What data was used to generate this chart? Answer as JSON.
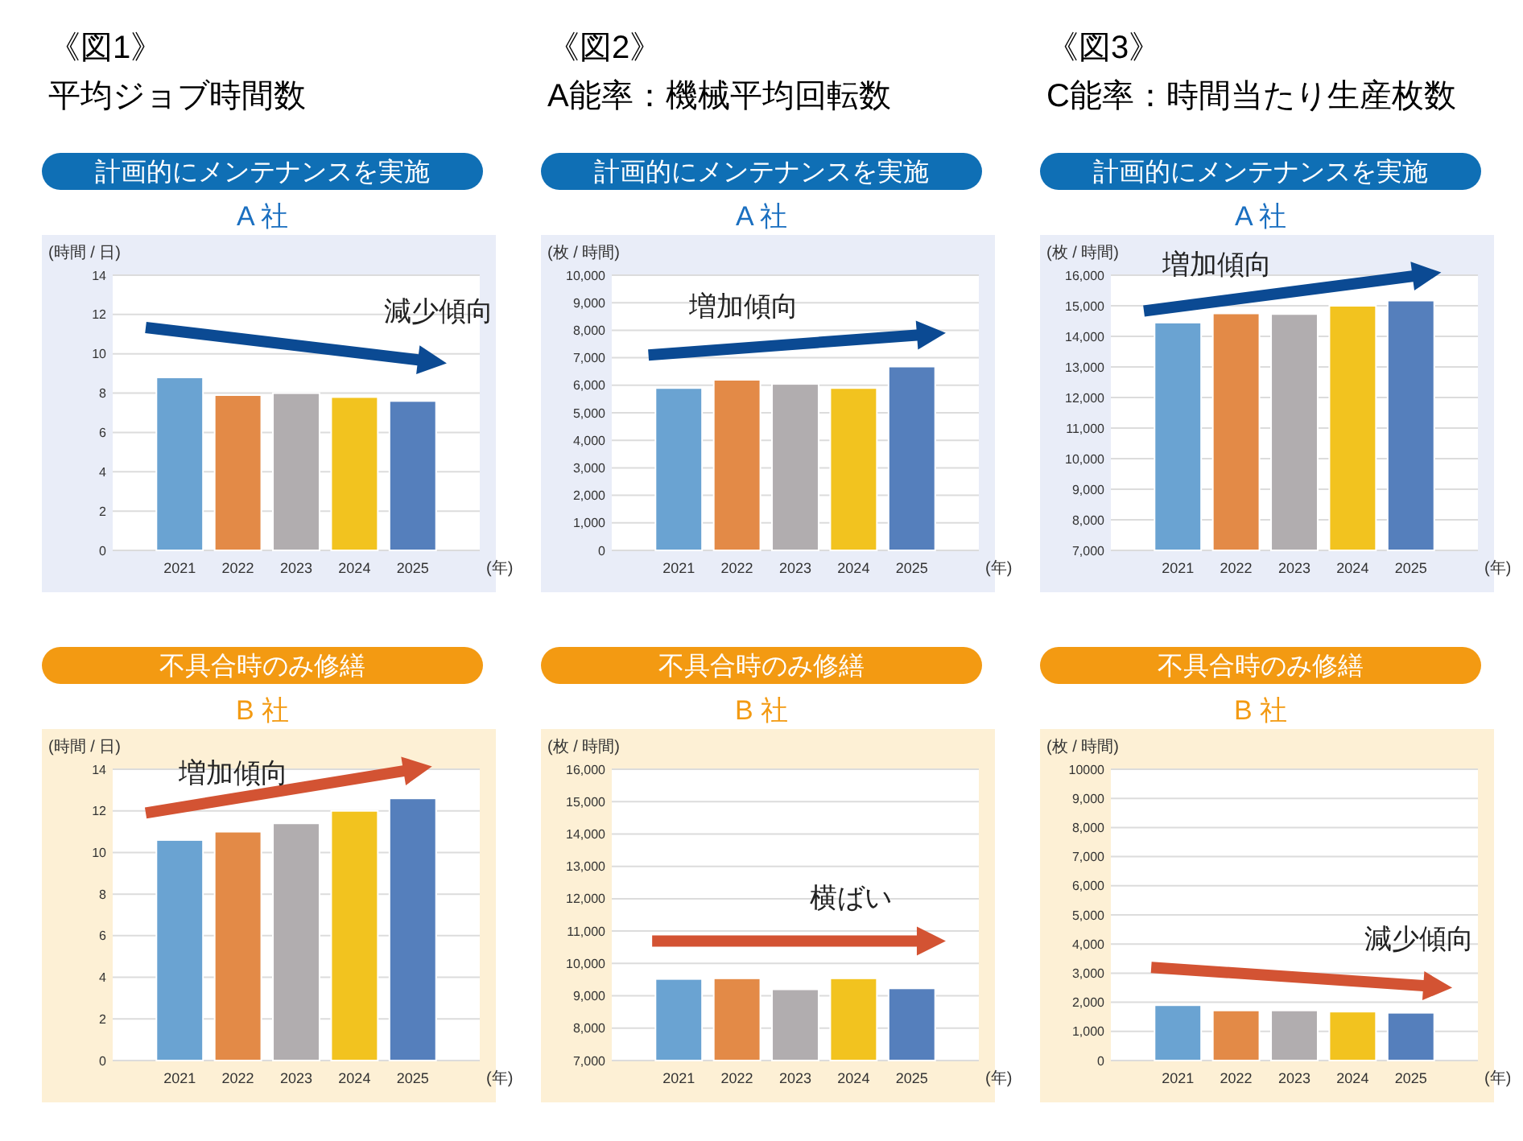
{
  "chart_data": [
    {
      "type": "bar",
      "title": "《図1》",
      "subtitle": "平均ジョブ時間数",
      "annotations": [
        "計画的にメンテナンスを実施",
        "A 社",
        "減少傾向"
      ],
      "ylabel": "(時間 / 日)",
      "xlabel": "(年)",
      "categories": [
        "2021",
        "2022",
        "2023",
        "2024",
        "2025"
      ],
      "values": [
        8.8,
        7.9,
        8.0,
        7.8,
        7.6
      ],
      "colors": [
        "#6aa3d2",
        "#e38a47",
        "#b1adaf",
        "#f2c31f",
        "#557fbc"
      ],
      "ylim": [
        0,
        14
      ],
      "yticks": [
        0,
        2,
        4,
        6,
        8,
        10,
        12,
        14
      ],
      "grid": "y"
    },
    {
      "type": "bar",
      "title": "《図2》",
      "subtitle": "A能率：機械平均回転数",
      "annotations": [
        "計画的にメンテナンスを実施",
        "A 社",
        "増加傾向"
      ],
      "ylabel": "(枚 / 時間)",
      "xlabel": "(年)",
      "categories": [
        "2021",
        "2022",
        "2023",
        "2024",
        "2025"
      ],
      "values": [
        5900,
        6200,
        6050,
        5900,
        6680
      ],
      "colors": [
        "#6aa3d2",
        "#e38a47",
        "#b1adaf",
        "#f2c31f",
        "#557fbc"
      ],
      "ylim": [
        0,
        10000
      ],
      "yticks": [
        0,
        {
          "value": 1000,
          "label": "1,000"
        },
        {
          "value": 2000,
          "label": "2,000"
        },
        {
          "value": 3000,
          "label": "3,000"
        },
        {
          "value": 4000,
          "label": "4,000"
        },
        {
          "value": 5000,
          "label": "5,000"
        },
        {
          "value": 6000,
          "label": "6,000"
        },
        {
          "value": 7000,
          "label": "7,000"
        },
        {
          "value": 8000,
          "label": "8,000"
        },
        {
          "value": 9000,
          "label": "9,000"
        },
        {
          "value": 10000,
          "label": "10,000"
        }
      ],
      "grid": "y"
    },
    {
      "type": "bar",
      "title": "《図3》",
      "subtitle": "C能率：時間当たり生産枚数",
      "annotations": [
        "計画的にメンテナンスを実施",
        "A 社",
        "増加傾向"
      ],
      "ylabel": "(枚 / 時間)",
      "xlabel": "(年)",
      "categories": [
        "2021",
        "2022",
        "2023",
        "2024",
        "2025"
      ],
      "values": [
        14450,
        14750,
        14730,
        15000,
        15170
      ],
      "colors": [
        "#6aa3d2",
        "#e38a47",
        "#b1adaf",
        "#f2c31f",
        "#557fbc"
      ],
      "ylim": [
        7000,
        16000
      ],
      "yticks": [
        {
          "value": 7000,
          "label": "7,000"
        },
        {
          "value": 8000,
          "label": "8,000"
        },
        {
          "value": 9000,
          "label": "9,000"
        },
        {
          "value": 10000,
          "label": "10,000"
        },
        {
          "value": 11000,
          "label": "11,000"
        },
        {
          "value": 12000,
          "label": "12,000"
        },
        {
          "value": 13000,
          "label": "13,000"
        },
        {
          "value": 14000,
          "label": "14,000"
        },
        {
          "value": 15000,
          "label": "15,000"
        },
        {
          "value": 16000,
          "label": "16,000"
        }
      ],
      "grid": "y"
    },
    {
      "type": "bar",
      "annotations": [
        "不具合時のみ修繕",
        "B 社",
        "増加傾向"
      ],
      "ylabel": "(時間 / 日)",
      "xlabel": "(年)",
      "categories": [
        "2021",
        "2022",
        "2023",
        "2024",
        "2025"
      ],
      "values": [
        10.6,
        11.0,
        11.4,
        12.0,
        12.6
      ],
      "colors": [
        "#6aa3d2",
        "#e38a47",
        "#b1adaf",
        "#f2c31f",
        "#557fbc"
      ],
      "ylim": [
        0,
        14
      ],
      "yticks": [
        0,
        2,
        4,
        6,
        8,
        10,
        12,
        14
      ],
      "grid": "y"
    },
    {
      "type": "bar",
      "annotations": [
        "不具合時のみ修繕",
        "B 社",
        "横ばい"
      ],
      "ylabel": "(枚 / 時間)",
      "xlabel": "(年)",
      "categories": [
        "2021",
        "2022",
        "2023",
        "2024",
        "2025"
      ],
      "values": [
        9520,
        9540,
        9200,
        9540,
        9230
      ],
      "colors": [
        "#6aa3d2",
        "#e38a47",
        "#b1adaf",
        "#f2c31f",
        "#557fbc"
      ],
      "ylim": [
        7000,
        16000
      ],
      "yticks": [
        {
          "value": 7000,
          "label": "7,000"
        },
        {
          "value": 8000,
          "label": "8,000"
        },
        {
          "value": 9000,
          "label": "9,000"
        },
        {
          "value": 10000,
          "label": "10,000"
        },
        {
          "value": 11000,
          "label": "11,000"
        },
        {
          "value": 12000,
          "label": "12,000"
        },
        {
          "value": 13000,
          "label": "13,000"
        },
        {
          "value": 14000,
          "label": "14,000"
        },
        {
          "value": 15000,
          "label": "15,000"
        },
        {
          "value": 16000,
          "label": "16,000"
        }
      ],
      "grid": "y"
    },
    {
      "type": "bar",
      "annotations": [
        "不具合時のみ修繕",
        "B 社",
        "減少傾向"
      ],
      "ylabel": "(枚 / 時間)",
      "xlabel": "(年)",
      "categories": [
        "2021",
        "2022",
        "2023",
        "2024",
        "2025"
      ],
      "values": [
        1900,
        1720,
        1720,
        1680,
        1640
      ],
      "colors": [
        "#6aa3d2",
        "#e38a47",
        "#b1adaf",
        "#f2c31f",
        "#557fbc"
      ],
      "ylim": [
        0,
        10000
      ],
      "yticks": [
        0,
        {
          "value": 1000,
          "label": "1,000"
        },
        {
          "value": 2000,
          "label": "2,000"
        },
        {
          "value": 3000,
          "label": "3,000"
        },
        {
          "value": 4000,
          "label": "4,000"
        },
        {
          "value": 5000,
          "label": "5,000"
        },
        {
          "value": 6000,
          "label": "6,000"
        },
        {
          "value": 7000,
          "label": "7,000"
        },
        {
          "value": 8000,
          "label": "8,000"
        },
        {
          "value": 9000,
          "label": "9,000"
        },
        10000
      ],
      "grid": "y"
    }
  ]
}
